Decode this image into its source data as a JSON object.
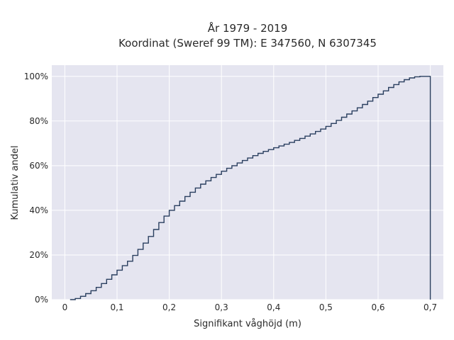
{
  "chart_data": {
    "type": "line",
    "line_shape": "step",
    "title_line1": "År 1979 - 2019",
    "title_line2": "Koordinat (Sweref 99 TM): E 347560, N 6307345",
    "xlabel": "Signifikant våghöjd (m)",
    "ylabel": "Kumulativ andel",
    "xlim": [
      -0.025,
      0.725
    ],
    "ylim": [
      0,
      1.05
    ],
    "x_ticks": [
      0,
      0.1,
      0.2,
      0.3,
      0.4,
      0.5,
      0.6,
      0.7
    ],
    "x_tick_labels": [
      "0",
      "0,1",
      "0,2",
      "0,3",
      "0,4",
      "0,5",
      "0,6",
      "0,7"
    ],
    "y_ticks": [
      0,
      0.2,
      0.4,
      0.6,
      0.8,
      1.0
    ],
    "y_tick_labels": [
      "0%",
      "20%",
      "40%",
      "60%",
      "80%",
      "100%"
    ],
    "grid": true,
    "line_color": "#2a3f5f",
    "plot_bg": "#e5e5f0",
    "x": [
      0.01,
      0.02,
      0.03,
      0.04,
      0.05,
      0.06,
      0.07,
      0.08,
      0.09,
      0.1,
      0.11,
      0.12,
      0.13,
      0.14,
      0.15,
      0.16,
      0.17,
      0.18,
      0.19,
      0.2,
      0.21,
      0.22,
      0.23,
      0.24,
      0.25,
      0.26,
      0.27,
      0.28,
      0.29,
      0.3,
      0.31,
      0.32,
      0.33,
      0.34,
      0.35,
      0.36,
      0.37,
      0.38,
      0.39,
      0.4,
      0.41,
      0.42,
      0.43,
      0.44,
      0.45,
      0.46,
      0.47,
      0.48,
      0.49,
      0.5,
      0.51,
      0.52,
      0.53,
      0.54,
      0.55,
      0.56,
      0.57,
      0.58,
      0.59,
      0.6,
      0.61,
      0.62,
      0.63,
      0.64,
      0.65,
      0.66,
      0.67,
      0.68,
      0.69,
      0.7
    ],
    "y": [
      0.0,
      0.005,
      0.015,
      0.027,
      0.04,
      0.055,
      0.072,
      0.091,
      0.111,
      0.132,
      0.152,
      0.172,
      0.198,
      0.225,
      0.253,
      0.283,
      0.314,
      0.345,
      0.374,
      0.4,
      0.421,
      0.441,
      0.462,
      0.481,
      0.5,
      0.517,
      0.532,
      0.547,
      0.561,
      0.575,
      0.588,
      0.6,
      0.612,
      0.623,
      0.634,
      0.645,
      0.655,
      0.664,
      0.672,
      0.68,
      0.688,
      0.696,
      0.704,
      0.713,
      0.722,
      0.732,
      0.742,
      0.753,
      0.764,
      0.776,
      0.789,
      0.803,
      0.817,
      0.831,
      0.845,
      0.859,
      0.874,
      0.889,
      0.905,
      0.92,
      0.935,
      0.95,
      0.963,
      0.975,
      0.985,
      0.993,
      0.998,
      1.0,
      1.0,
      0.0
    ]
  }
}
